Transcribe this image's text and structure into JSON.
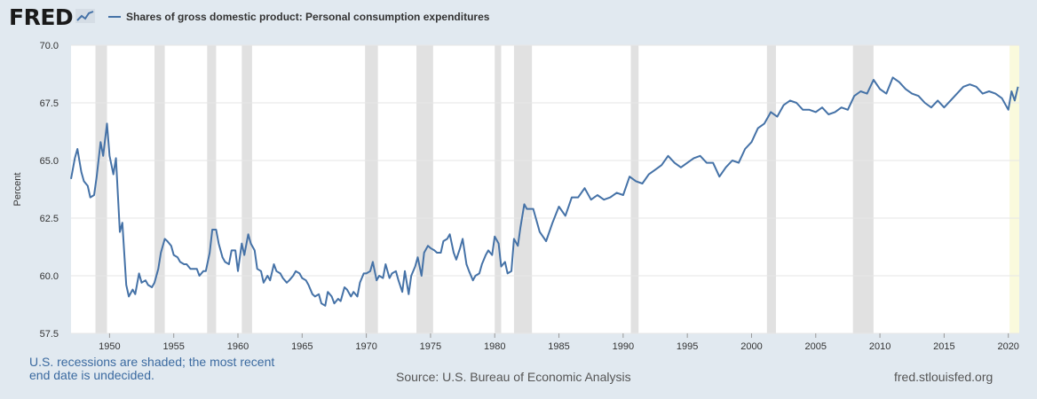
{
  "header": {
    "logo_text": "FRED",
    "logo_icon": "line-graph-icon"
  },
  "legend": {
    "label": "Shares of gross domestic product: Personal consumption expenditures",
    "color": "#4572a7"
  },
  "footer": {
    "note": "U.S. recessions are shaded; the most recent end date is undecided.",
    "source": "Source: U.S. Bureau of Economic Analysis",
    "url": "fred.stlouisfed.org"
  },
  "chart_data": {
    "type": "line",
    "ylabel": "Percent",
    "xlim": [
      1947.0,
      2020.85
    ],
    "ylim": [
      57.5,
      70.0
    ],
    "y_ticks": [
      57.5,
      60.0,
      62.5,
      65.0,
      67.5,
      70.0
    ],
    "y_tick_labels": [
      "57.5",
      "60.0",
      "62.5",
      "65.0",
      "67.5",
      "70.0"
    ],
    "x_ticks": [
      1950,
      1955,
      1960,
      1965,
      1970,
      1975,
      1980,
      1985,
      1990,
      1995,
      2000,
      2005,
      2010,
      2015,
      2020
    ],
    "x_tick_labels": [
      "1950",
      "1955",
      "1960",
      "1965",
      "1970",
      "1975",
      "1980",
      "1985",
      "1990",
      "1995",
      "2000",
      "2005",
      "2010",
      "2015",
      "2020"
    ],
    "grid": "horizontal",
    "colors": {
      "line": "#4572a7",
      "plot_background": "#ffffff",
      "recession": "#e1e1e1",
      "recession_open": "#fafadc"
    },
    "recessions": [
      [
        1948.9,
        1949.8
      ],
      [
        1953.5,
        1954.3
      ],
      [
        1957.6,
        1958.3
      ],
      [
        1960.3,
        1961.1
      ],
      [
        1969.9,
        1970.9
      ],
      [
        1973.9,
        1975.2
      ],
      [
        1980.0,
        1980.5
      ],
      [
        1981.5,
        1982.9
      ],
      [
        1990.6,
        1991.2
      ],
      [
        2001.2,
        2001.9
      ],
      [
        2007.9,
        2009.5
      ]
    ],
    "recession_open": [
      2020.1,
      2020.85
    ],
    "series": [
      {
        "name": "Shares of gross domestic product: Personal consumption expenditures",
        "x": [
          1947.0,
          1947.3,
          1947.5,
          1947.8,
          1948.0,
          1948.3,
          1948.5,
          1948.8,
          1949.0,
          1949.3,
          1949.5,
          1949.8,
          1950.0,
          1950.3,
          1950.5,
          1950.8,
          1951.0,
          1951.3,
          1951.5,
          1951.8,
          1952.0,
          1952.3,
          1952.5,
          1952.8,
          1953.0,
          1953.3,
          1953.5,
          1953.8,
          1954.0,
          1954.3,
          1954.5,
          1954.8,
          1955.0,
          1955.3,
          1955.5,
          1955.8,
          1956.0,
          1956.3,
          1956.5,
          1956.8,
          1957.0,
          1957.3,
          1957.5,
          1957.8,
          1958.0,
          1958.3,
          1958.5,
          1958.8,
          1959.0,
          1959.3,
          1959.5,
          1959.8,
          1960.0,
          1960.3,
          1960.5,
          1960.8,
          1961.0,
          1961.3,
          1961.5,
          1961.8,
          1962.0,
          1962.3,
          1962.5,
          1962.8,
          1963.0,
          1963.3,
          1963.5,
          1963.8,
          1964.0,
          1964.3,
          1964.5,
          1964.8,
          1965.0,
          1965.3,
          1965.5,
          1965.8,
          1966.0,
          1966.3,
          1966.5,
          1966.8,
          1967.0,
          1967.3,
          1967.5,
          1967.8,
          1968.0,
          1968.3,
          1968.5,
          1968.8,
          1969.0,
          1969.3,
          1969.5,
          1969.8,
          1970.0,
          1970.3,
          1970.5,
          1970.8,
          1971.0,
          1971.3,
          1971.5,
          1971.8,
          1972.0,
          1972.3,
          1972.5,
          1972.8,
          1973.0,
          1973.3,
          1973.5,
          1973.8,
          1974.0,
          1974.3,
          1974.5,
          1974.8,
          1975.0,
          1975.3,
          1975.5,
          1975.8,
          1976.0,
          1976.3,
          1976.5,
          1976.8,
          1977.0,
          1977.3,
          1977.5,
          1977.8,
          1978.0,
          1978.3,
          1978.5,
          1978.8,
          1979.0,
          1979.3,
          1979.5,
          1979.8,
          1980.0,
          1980.3,
          1980.5,
          1980.8,
          1981.0,
          1981.3,
          1981.5,
          1981.8,
          1982.0,
          1982.3,
          1982.5,
          1982.8,
          1983.0,
          1983.5,
          1984.0,
          1984.5,
          1985.0,
          1985.5,
          1986.0,
          1986.5,
          1987.0,
          1987.5,
          1988.0,
          1988.5,
          1989.0,
          1989.5,
          1990.0,
          1990.5,
          1991.0,
          1991.5,
          1992.0,
          1992.5,
          1993.0,
          1993.5,
          1994.0,
          1994.5,
          1995.0,
          1995.5,
          1996.0,
          1996.5,
          1997.0,
          1997.5,
          1998.0,
          1998.5,
          1999.0,
          1999.5,
          2000.0,
          2000.5,
          2001.0,
          2001.5,
          2002.0,
          2002.5,
          2003.0,
          2003.5,
          2004.0,
          2004.5,
          2005.0,
          2005.5,
          2006.0,
          2006.5,
          2007.0,
          2007.5,
          2008.0,
          2008.5,
          2009.0,
          2009.5,
          2010.0,
          2010.5,
          2011.0,
          2011.5,
          2012.0,
          2012.5,
          2013.0,
          2013.5,
          2014.0,
          2014.5,
          2015.0,
          2015.5,
          2016.0,
          2016.5,
          2017.0,
          2017.5,
          2018.0,
          2018.5,
          2019.0,
          2019.5,
          2020.0,
          2020.25,
          2020.5,
          2020.75
        ],
        "y": [
          64.2,
          65.1,
          65.5,
          64.5,
          64.1,
          63.9,
          63.4,
          63.5,
          64.3,
          65.8,
          65.2,
          66.6,
          65.2,
          64.4,
          65.1,
          61.9,
          62.3,
          59.6,
          59.1,
          59.4,
          59.2,
          60.1,
          59.7,
          59.8,
          59.6,
          59.5,
          59.7,
          60.3,
          61.0,
          61.6,
          61.5,
          61.3,
          60.9,
          60.8,
          60.6,
          60.5,
          60.5,
          60.3,
          60.3,
          60.3,
          60.0,
          60.2,
          60.2,
          61.0,
          62.0,
          62.0,
          61.4,
          60.8,
          60.6,
          60.5,
          61.1,
          61.1,
          60.2,
          61.4,
          60.9,
          61.8,
          61.4,
          61.1,
          60.3,
          60.2,
          59.7,
          60.0,
          59.8,
          60.5,
          60.2,
          60.1,
          59.9,
          59.7,
          59.8,
          60.0,
          60.2,
          60.1,
          59.9,
          59.8,
          59.6,
          59.2,
          59.1,
          59.2,
          58.8,
          58.7,
          59.3,
          59.1,
          58.8,
          59.0,
          58.9,
          59.5,
          59.4,
          59.1,
          59.3,
          59.1,
          59.7,
          60.1,
          60.1,
          60.2,
          60.6,
          59.8,
          60.0,
          59.9,
          60.5,
          59.9,
          60.1,
          60.2,
          59.8,
          59.3,
          60.2,
          59.2,
          60.0,
          60.4,
          60.8,
          60.0,
          61.0,
          61.3,
          61.2,
          61.1,
          61.0,
          61.0,
          61.5,
          61.6,
          61.8,
          61.0,
          60.7,
          61.2,
          61.6,
          60.5,
          60.2,
          59.8,
          60.0,
          60.1,
          60.5,
          60.9,
          61.1,
          60.9,
          61.7,
          61.4,
          60.4,
          60.6,
          60.1,
          60.2,
          61.6,
          61.3,
          62.1,
          63.1,
          62.9,
          62.9,
          62.9,
          61.9,
          61.5,
          62.3,
          63.0,
          62.6,
          63.4,
          63.4,
          63.8,
          63.3,
          63.5,
          63.3,
          63.4,
          63.6,
          63.5,
          64.3,
          64.1,
          64.0,
          64.4,
          64.6,
          64.8,
          65.2,
          64.9,
          64.7,
          64.9,
          65.1,
          65.2,
          64.9,
          64.9,
          64.3,
          64.7,
          65.0,
          64.9,
          65.5,
          65.8,
          66.4,
          66.6,
          67.1,
          66.9,
          67.4,
          67.6,
          67.5,
          67.2,
          67.2,
          67.1,
          67.3,
          67.0,
          67.1,
          67.3,
          67.2,
          67.8,
          68.0,
          67.9,
          68.5,
          68.1,
          67.9,
          68.6,
          68.4,
          68.1,
          67.9,
          67.8,
          67.5,
          67.3,
          67.6,
          67.3,
          67.6,
          67.9,
          68.2,
          68.3,
          68.2,
          67.9,
          68.0,
          67.9,
          67.7,
          67.2,
          68.0,
          67.6,
          68.2
        ]
      }
    ]
  }
}
